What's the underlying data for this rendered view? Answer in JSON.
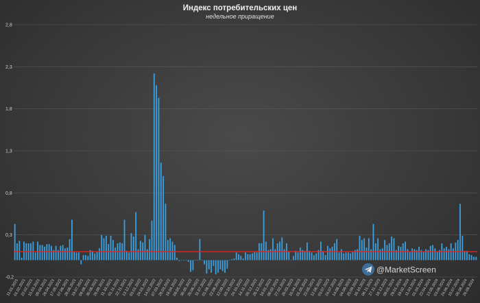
{
  "chart_data": {
    "type": "bar",
    "title": "Индекс потребительских цен",
    "subtitle": "недельное приращение",
    "xlabel": "",
    "ylabel": "",
    "ylim": [
      -0.2,
      2.8
    ],
    "yticks": [
      "2,8",
      "2,3",
      "1,8",
      "1,3",
      "0,8",
      "0,3",
      "-0,2"
    ],
    "ytick_values": [
      2.8,
      2.3,
      1.8,
      1.3,
      0.8,
      0.3,
      -0.2
    ],
    "grid": true,
    "bar_color": "#3aa0e0",
    "reference_line": {
      "value": 0.1,
      "color": "#e02424"
    },
    "x_tick_labels": [
      "11.01.2021",
      "01.02.2021",
      "22.02.2021",
      "15.03.2021",
      "05.04.2021",
      "26.04.2021",
      "17.05.2021",
      "07.06.2021",
      "28.06.2021",
      "19.07.2021",
      "09.08.2021",
      "30.08.2021",
      "20.09.2021",
      "11.10.2021",
      "01.11.2021",
      "22.11.2021",
      "13.12.2021",
      "03.01.2022",
      "24.01.2022",
      "14.02.2022",
      "07.03.2022",
      "28.03.2022",
      "18.04.2022",
      "09.05.2022",
      "30.05.2022",
      "20.06.2022",
      "11.07.2022",
      "01.08.2022",
      "22.08.2022",
      "12.09.2022",
      "03.10.2022",
      "24.10.2022",
      "14.11.2022",
      "05.12.2022",
      "26.12.2022",
      "16.01.2023",
      "06.02.2023",
      "27.02.2023",
      "20.03.2023",
      "10.04.2023",
      "01.05.2023",
      "22.05.2023",
      "12.06.2023",
      "03.07.2023",
      "24.07.2023",
      "14.08.2023",
      "04.09.2023",
      "25.09.2023",
      "16.10.2023",
      "06.11.2023",
      "27.11.2023",
      "18.12.2023",
      "08.01.2024",
      "29.01.2024",
      "19.02.2024",
      "11.03.2024",
      "01.04.2024",
      "22.04.2024",
      "13.05.2024",
      "03.06.2024",
      "24.06.2024",
      "15.07.2024",
      "05.08.2024",
      "26.08.2024"
    ],
    "values": [
      0.43,
      0.2,
      0.23,
      0.03,
      0.22,
      0.2,
      0.2,
      0.2,
      0.22,
      0.09,
      0.22,
      0.18,
      0.18,
      0.16,
      0.19,
      0.19,
      0.17,
      0.12,
      0.17,
      0.12,
      0.17,
      0.18,
      0.14,
      0.15,
      0.25,
      0.48,
      0.1,
      0.09,
      0.09,
      -0.05,
      0.06,
      0.06,
      0.05,
      0.12,
      0.11,
      0.08,
      0.1,
      0.14,
      0.3,
      0.26,
      0.29,
      0.19,
      0.29,
      0.24,
      0.15,
      0.2,
      0.21,
      0.2,
      0.48,
      0.11,
      0.09,
      0.32,
      0.28,
      0.57,
      0.13,
      0.23,
      0.21,
      0.3,
      0.13,
      0.25,
      0.47,
      2.22,
      2.08,
      1.93,
      1.16,
      1.0,
      0.67,
      0.24,
      0.26,
      0.22,
      0.18,
      0.03,
      -0.01,
      0.0,
      0.0,
      0.0,
      -0.02,
      -0.14,
      -0.12,
      0.0,
      0.0,
      0.25,
      0.0,
      -0.05,
      -0.16,
      -0.11,
      -0.15,
      -0.07,
      -0.17,
      -0.15,
      -0.11,
      -0.13,
      -0.15,
      -0.1,
      0.0,
      0.01,
      0.02,
      0.09,
      0.07,
      0.05,
      0.02,
      0.09,
      0.07,
      0.07,
      0.08,
      0.1,
      0.09,
      0.2,
      0.2,
      0.59,
      0.22,
      0.12,
      0.13,
      0.26,
      0.13,
      0.2,
      0.22,
      0.27,
      0.13,
      0.2,
      0.1,
      0.0,
      0.05,
      0.11,
      0.09,
      0.15,
      0.12,
      0.11,
      0.21,
      0.11,
      0.09,
      0.06,
      0.08,
      0.12,
      0.22,
      0.11,
      0.06,
      0.17,
      0.14,
      0.16,
      0.2,
      0.25,
      0.09,
      0.13,
      0.08,
      0.09,
      0.09,
      0.08,
      0.1,
      0.12,
      0.13,
      0.29,
      0.24,
      0.26,
      0.15,
      0.26,
      0.13,
      0.43,
      0.2,
      0.26,
      0.13,
      0.14,
      0.24,
      0.18,
      0.2,
      0.28,
      0.26,
      0.12,
      0.17,
      0.16,
      0.2,
      0.22,
      0.13,
      0.1,
      0.14,
      0.13,
      0.12,
      0.16,
      0.12,
      0.1,
      0.13,
      0.12,
      0.17,
      0.18,
      0.14,
      0.1,
      0.12,
      0.2,
      0.14,
      0.16,
      0.13,
      0.2,
      0.14,
      0.21,
      0.24,
      0.67,
      0.29,
      0.11,
      0.11,
      0.07,
      0.06,
      0.04,
      0.04
    ]
  },
  "watermark": {
    "text": "@MarketScreen",
    "icon": "telegram-icon"
  }
}
